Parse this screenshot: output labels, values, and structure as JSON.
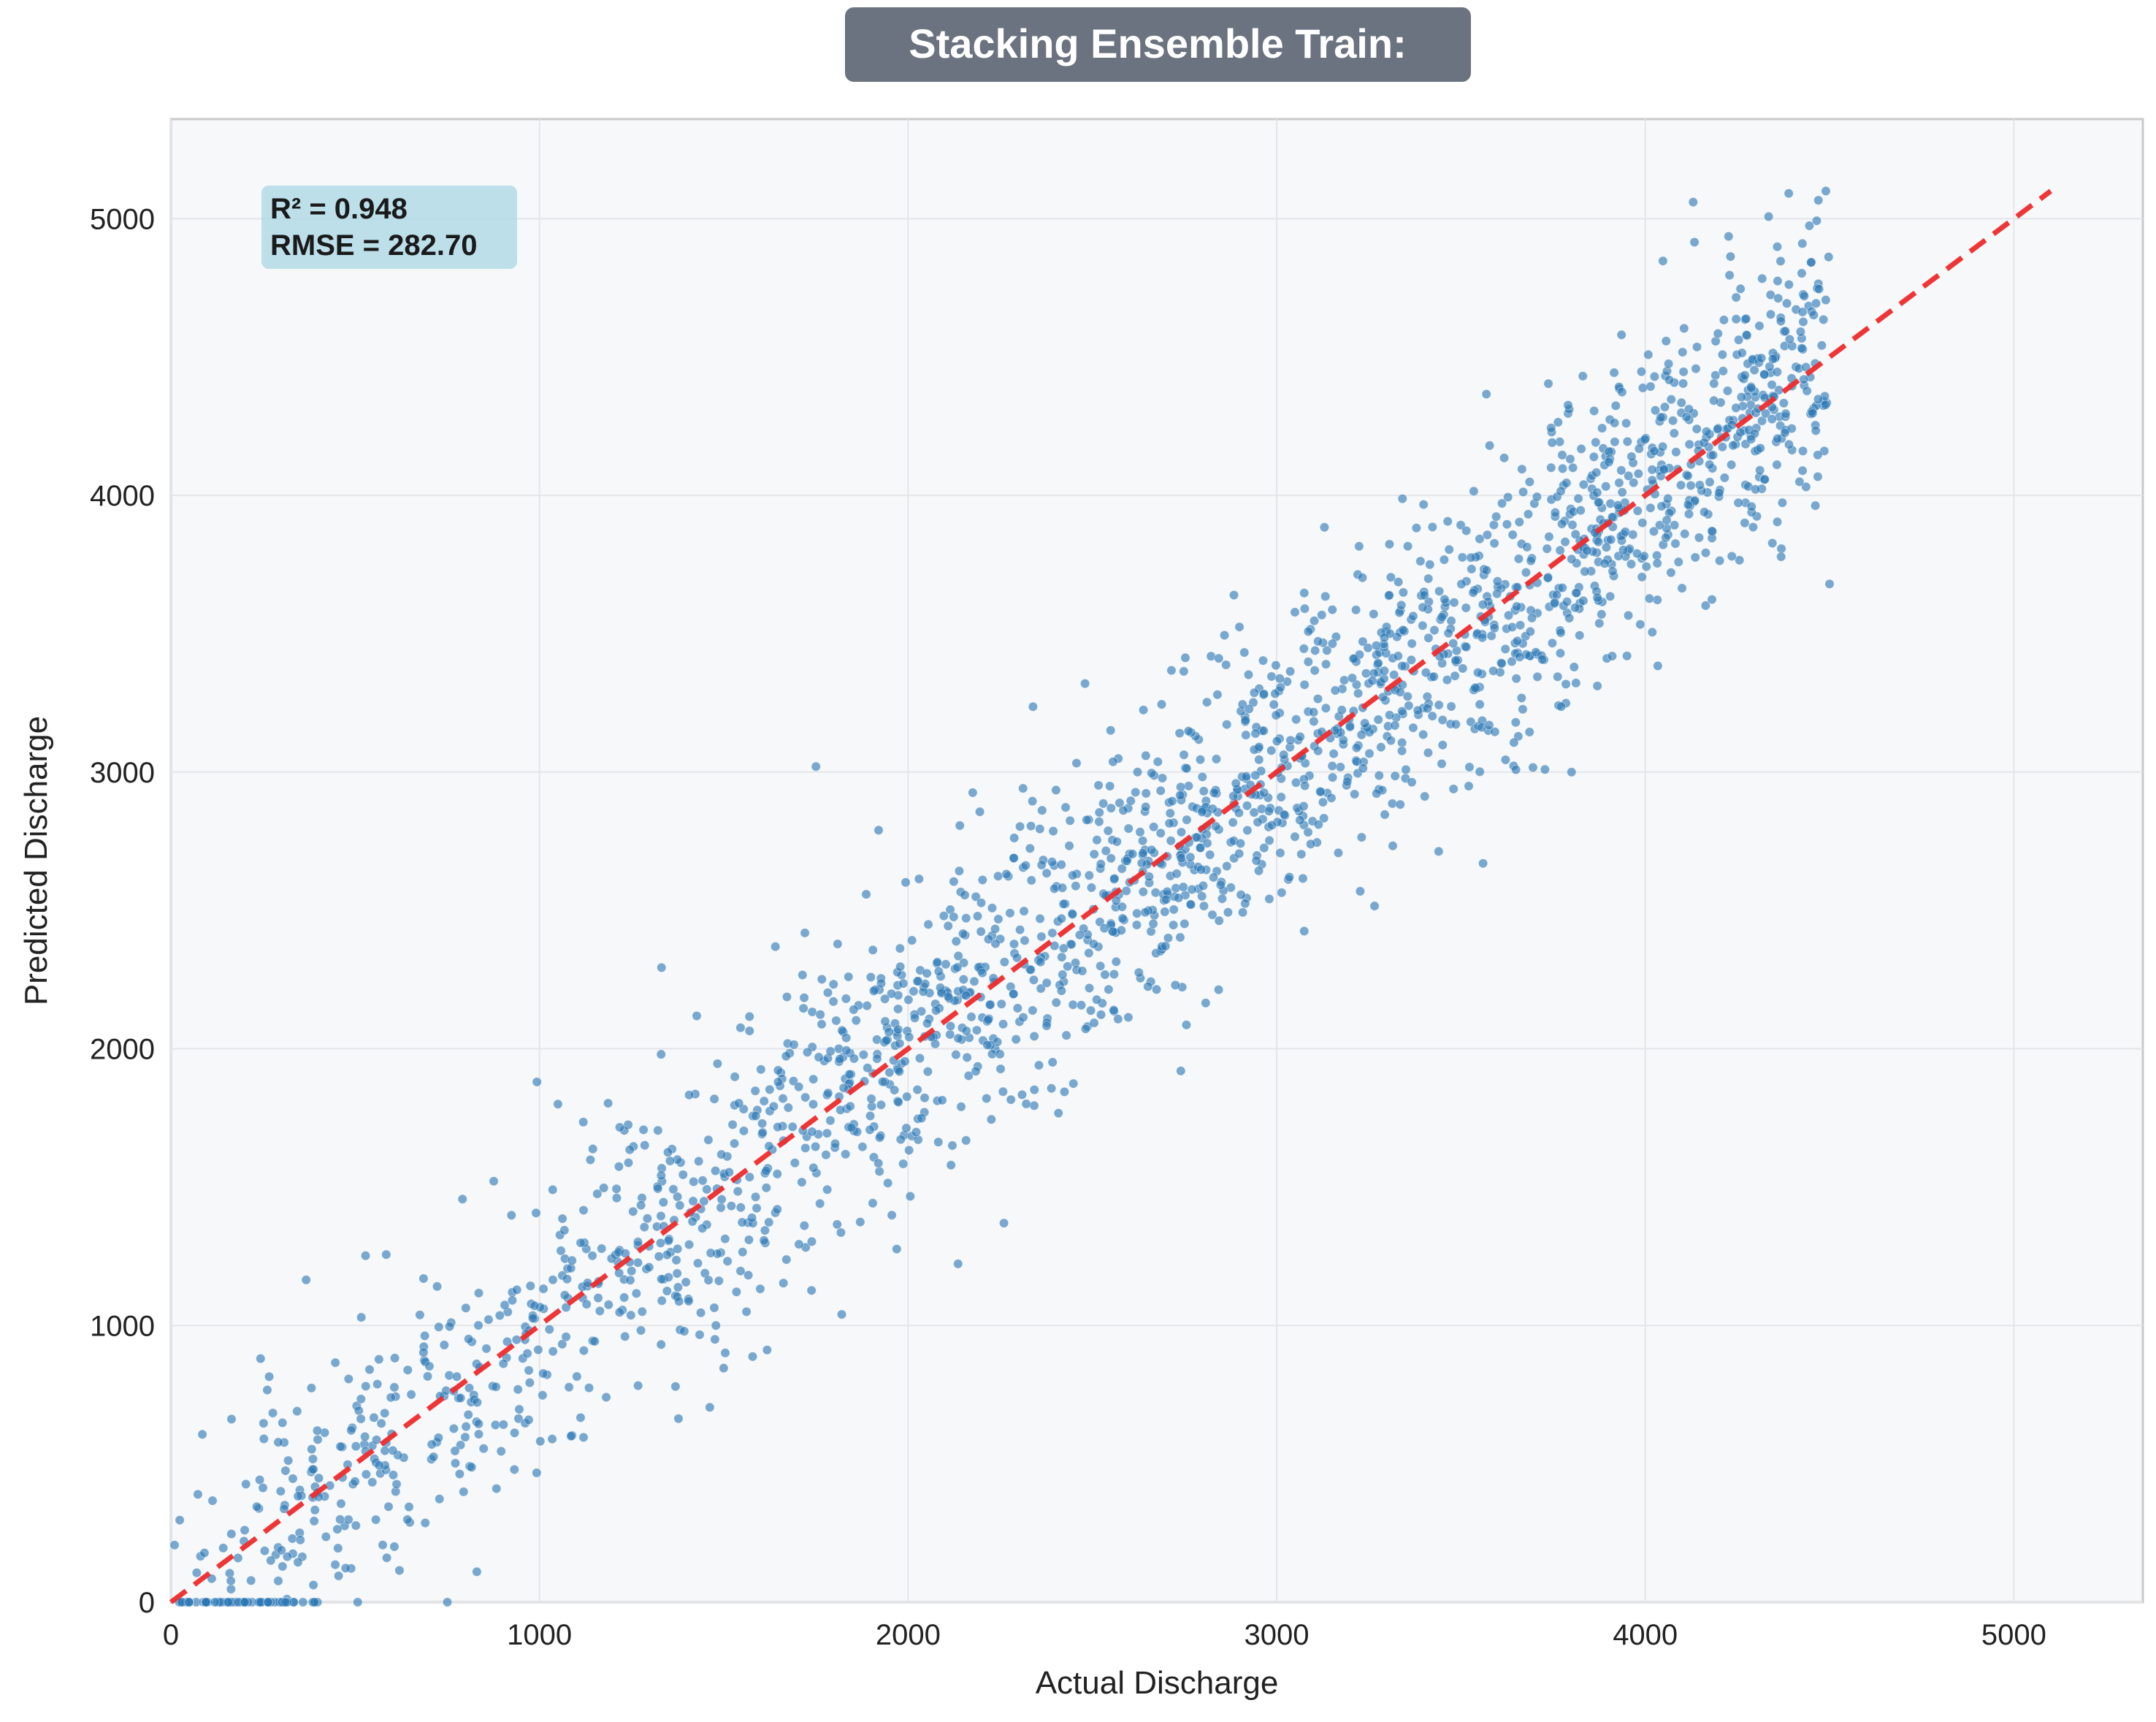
{
  "chart_data": {
    "type": "scatter",
    "title": "Stacking Ensemble Train:",
    "xlabel": "Actual Discharge",
    "ylabel": "Predicted Discharge",
    "xlim": [
      0,
      5350
    ],
    "ylim": [
      0,
      5360
    ],
    "xticks": [
      0,
      1000,
      2000,
      3000,
      4000,
      5000
    ],
    "yticks": [
      0,
      1000,
      2000,
      3000,
      4000,
      5000
    ],
    "grid": true,
    "stats_box": {
      "r2_text": "R² = 0.948",
      "rmse_text": "RMSE = 282.70",
      "placement": "top-left"
    },
    "reference_line": {
      "style": "dashed",
      "color": "#ee2b2b",
      "x": [
        0,
        5100
      ],
      "y": [
        0,
        5100
      ]
    },
    "series": [
      {
        "point_count": 2200,
        "x_range": [
          0,
          4500
        ],
        "fit_slope": 1.0,
        "residual_std": 282.7,
        "color": "#2a77b4",
        "sample_points": [
          {
            "x": 1750,
            "y": 3020
          },
          {
            "x": 1920,
            "y": 2790
          },
          {
            "x": 2480,
            "y": 3320
          },
          {
            "x": 2260,
            "y": 1370
          },
          {
            "x": 2740,
            "y": 1920
          },
          {
            "x": 4130,
            "y": 5060
          },
          {
            "x": 4490,
            "y": 5100
          },
          {
            "x": 4500,
            "y": 3680
          },
          {
            "x": 3560,
            "y": 2670
          },
          {
            "x": 3800,
            "y": 3000
          },
          {
            "x": 1050,
            "y": 1800
          },
          {
            "x": 1330,
            "y": 1980
          },
          {
            "x": 750,
            "y": 0
          },
          {
            "x": 830,
            "y": 110
          },
          {
            "x": 1820,
            "y": 1040
          }
        ]
      }
    ]
  }
}
